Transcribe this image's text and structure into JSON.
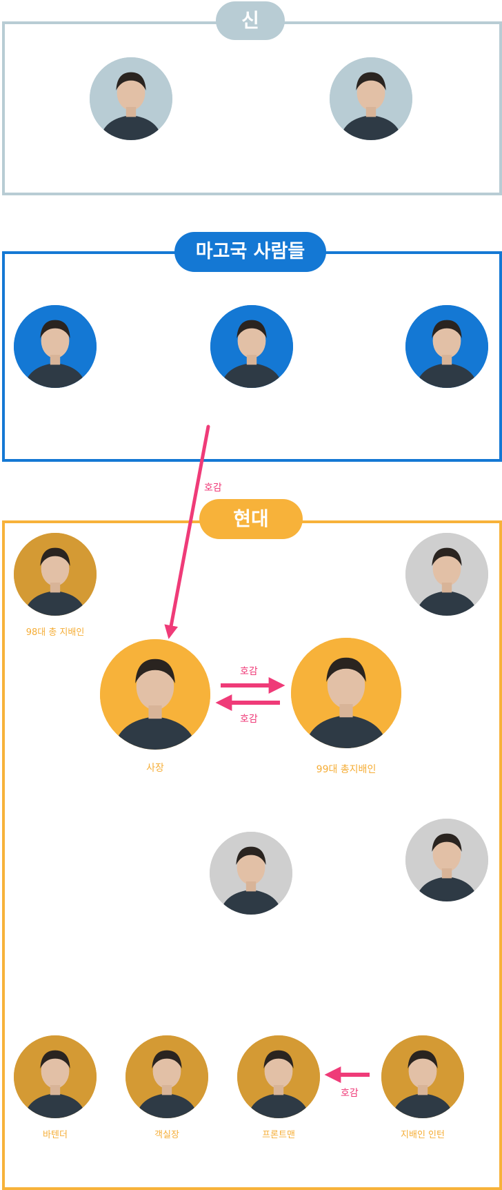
{
  "groups": {
    "gods": {
      "label": "신",
      "color": "#b8ccd4"
    },
    "magoguk": {
      "label": "마고국 사람들",
      "color": "#1478d4"
    },
    "modern": {
      "label": "현대",
      "color": "#f7b23a"
    }
  },
  "characters": {
    "god_female": {
      "avatar_bg": "#b8ccd4",
      "caption": ""
    },
    "god_male": {
      "avatar_bg": "#b8ccd4",
      "caption": ""
    },
    "magoguk_1": {
      "avatar_bg": "#1478d4",
      "caption": ""
    },
    "magoguk_2": {
      "avatar_bg": "#1478d4",
      "caption": ""
    },
    "magoguk_3": {
      "avatar_bg": "#1478d4",
      "caption": ""
    },
    "manager_98": {
      "avatar_bg": "#d49a34",
      "caption": "98대 총 지배인"
    },
    "woman_grey": {
      "avatar_bg": "#cfcfcf",
      "caption": ""
    },
    "ceo": {
      "avatar_bg": "#f7b23a",
      "caption": "사장"
    },
    "manager_99": {
      "avatar_bg": "#f7b23a",
      "caption": "99대 총지배인"
    },
    "man_grey_center": {
      "avatar_bg": "#cfcfcf",
      "caption": ""
    },
    "man_grey_right": {
      "avatar_bg": "#cfcfcf",
      "caption": ""
    },
    "bartender": {
      "avatar_bg": "#d49a34",
      "caption": "바텐더"
    },
    "room_manager": {
      "avatar_bg": "#d49a34",
      "caption": "객실장"
    },
    "frontman": {
      "avatar_bg": "#d49a34",
      "caption": "프론트맨"
    },
    "intern": {
      "avatar_bg": "#d49a34",
      "caption": "지배인 인턴"
    }
  },
  "relations": {
    "magoguk_to_ceo": "호감",
    "ceo_to_manager": "호감",
    "manager_to_ceo": "호감",
    "intern_to_frontman": "호감"
  },
  "colors": {
    "relation_arrow": "#ef3b78",
    "caption_text": "#f5ad36"
  }
}
